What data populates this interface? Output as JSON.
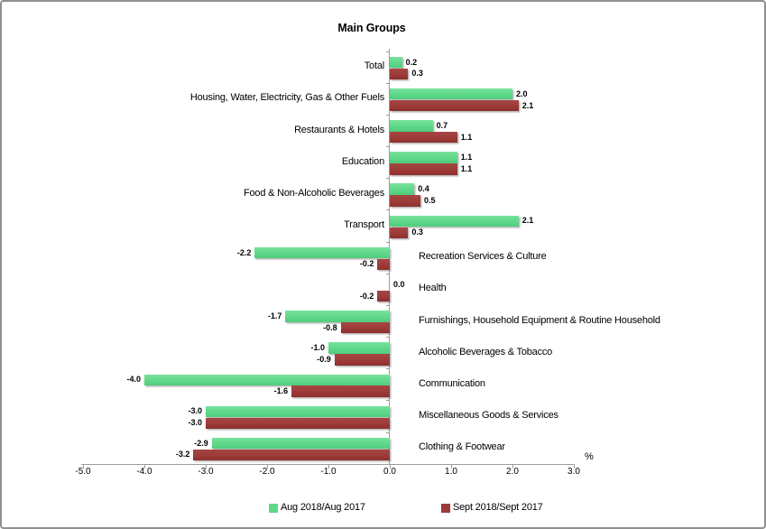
{
  "chart_data": {
    "type": "bar",
    "orientation": "horizontal",
    "title": "Main Groups",
    "xlabel": "%",
    "xlim": [
      -5.0,
      3.0
    ],
    "x_ticks": [
      -5.0,
      -4.0,
      -3.0,
      -2.0,
      -1.0,
      0.0,
      1.0,
      2.0,
      3.0
    ],
    "x_tick_labels": [
      "-5.0",
      "-4.0",
      "-3.0",
      "-2.0",
      "-1.0",
      "0.0",
      "1.0",
      "2.0",
      "3.0"
    ],
    "grid": false,
    "value_labels": true,
    "legend_position": "bottom",
    "categories": [
      "Total",
      "Housing, Water, Electricity, Gas & Other Fuels",
      "Restaurants & Hotels",
      "Education",
      "Food & Non-Alcoholic Beverages",
      "Transport",
      "Recreation Services & Culture",
      "Health",
      "Furnishings, Household Equipment & Routine Household",
      "Alcoholic Beverages & Tobacco",
      "Communication",
      "Miscellaneous Goods & Services",
      "Clothing & Footwear"
    ],
    "series": [
      {
        "name": "Aug 2018/Aug 2017",
        "color": "#5ED889",
        "values": [
          0.2,
          2.0,
          0.7,
          1.1,
          0.4,
          2.1,
          -2.2,
          0.0,
          -1.7,
          -1.0,
          -4.0,
          -3.0,
          -2.9
        ]
      },
      {
        "name": "Sept 2018/Sept 2017",
        "color": "#9C3B38",
        "values": [
          0.3,
          2.1,
          1.1,
          1.1,
          0.5,
          0.3,
          -0.2,
          -0.2,
          -0.8,
          -0.9,
          -1.6,
          -3.0,
          -3.2
        ]
      }
    ]
  }
}
